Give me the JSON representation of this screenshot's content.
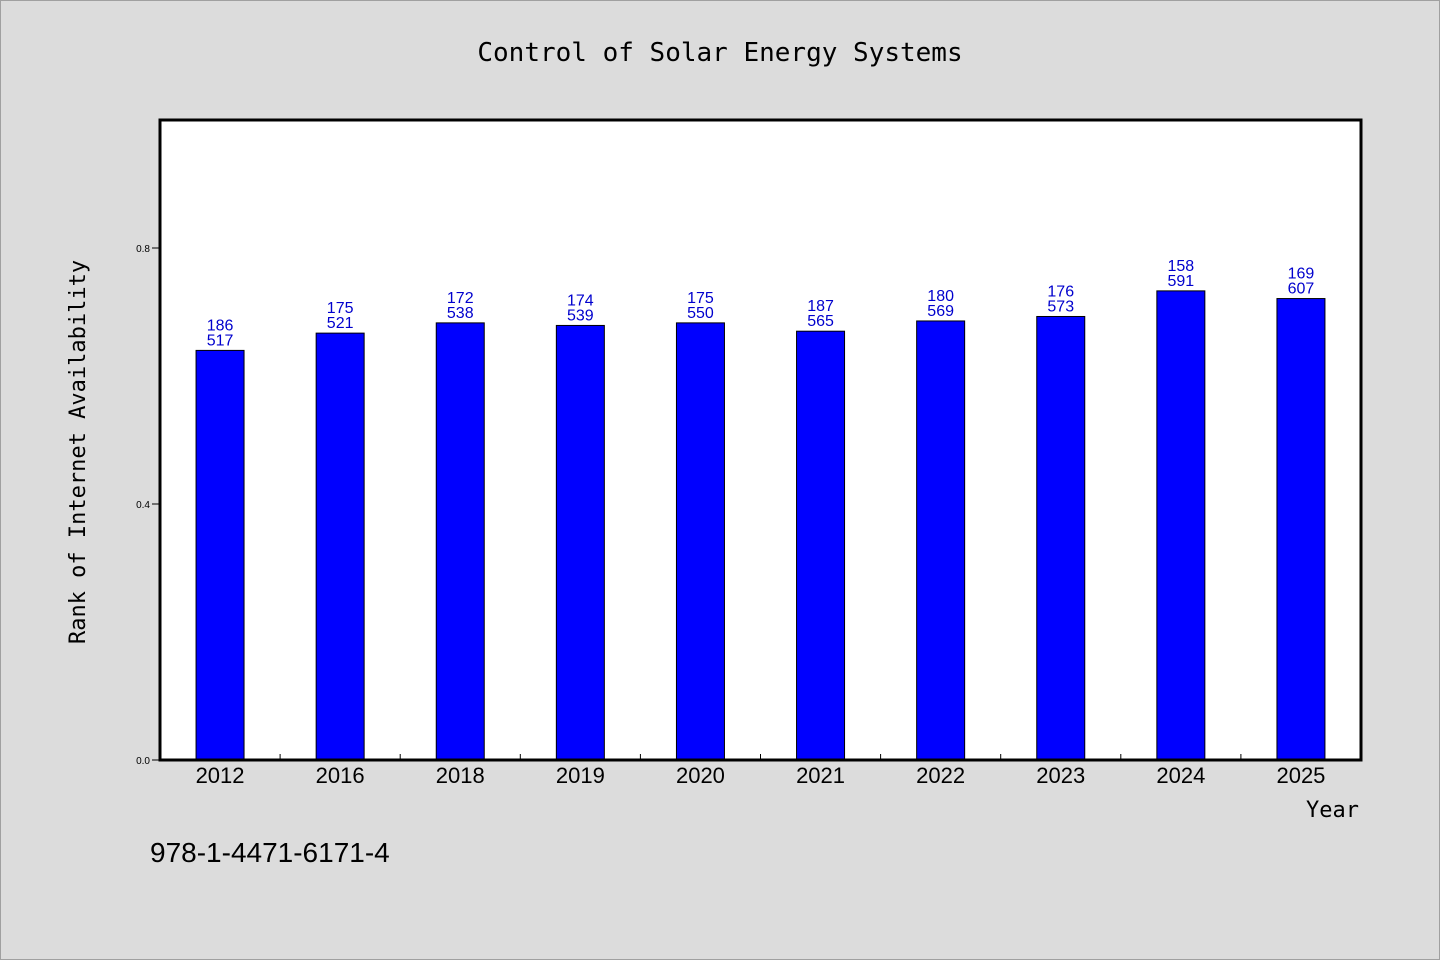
{
  "chart_data": {
    "type": "bar",
    "title": "Control of Solar Energy Systems",
    "xlabel": "Year",
    "ylabel": "Rank of Internet Availability",
    "categories": [
      "2012",
      "2016",
      "2018",
      "2019",
      "2020",
      "2021",
      "2022",
      "2023",
      "2024",
      "2025"
    ],
    "series": [
      {
        "values": [
          0.64,
          0.667,
          0.683,
          0.679,
          0.683,
          0.67,
          0.686,
          0.693,
          0.733,
          0.721
        ]
      }
    ],
    "bar_labels": [
      [
        "186",
        "517"
      ],
      [
        "175",
        "521"
      ],
      [
        "172",
        "538"
      ],
      [
        "174",
        "539"
      ],
      [
        "175",
        "550"
      ],
      [
        "187",
        "565"
      ],
      [
        "180",
        "569"
      ],
      [
        "176",
        "573"
      ],
      [
        "158",
        "591"
      ],
      [
        "169",
        "607"
      ]
    ],
    "yticks": [
      "0.0",
      "0.4",
      "0.8"
    ],
    "ylim": [
      0,
      1.0
    ],
    "grid": false,
    "legend": "none",
    "colors": {
      "bar": "#0000ff",
      "bar_label": "#0000cd",
      "background": "#dcdcdc",
      "plot_area": "#ffffff"
    }
  },
  "footer": {
    "isbn": "978-1-4471-6171-4"
  }
}
